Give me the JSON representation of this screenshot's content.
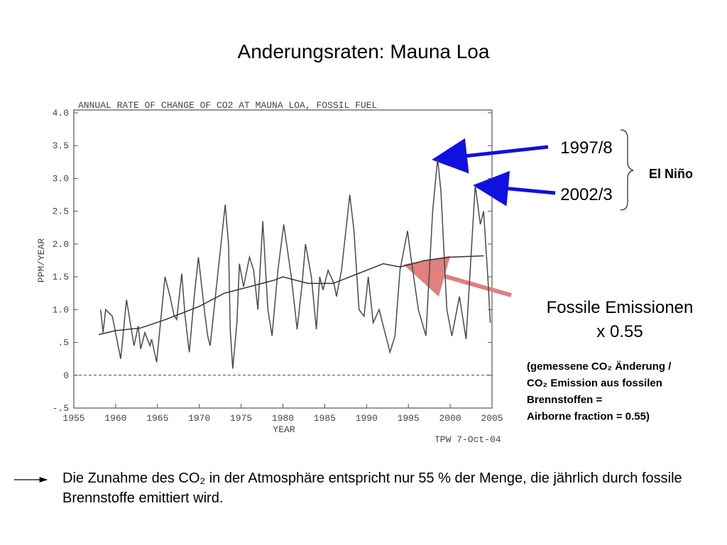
{
  "slide": {
    "title": "Anderungsraten: Mauna Loa",
    "label_1997": "1997/8",
    "label_2002": "2002/3",
    "el_nino": "El Niño",
    "fossil_1": "Fossile Emissionen",
    "fossil_2": "x 0.55",
    "note_lines": [
      "(gemessene CO₂ Änderung /",
      "CO₂ Emission aus fossilen",
      "Brennstoffen =",
      "Airborne fraction = 0.55)"
    ],
    "conclusion": "Die Zunahme des CO₂ in der Atmosphäre entspricht nur 55 % der Menge, die jährlich durch fossile Brennstoffe emittiert wird."
  },
  "chart_data": {
    "type": "line",
    "title": "ANNUAL RATE OF CHANGE OF CO2 AT MAUNA LOA, FOSSIL FUEL",
    "xlabel": "YEAR",
    "ylabel": "PPM/YEAR",
    "footnote": "TPW   7-Oct-04",
    "xlim": [
      1955,
      2005
    ],
    "xticks": [
      1955,
      1960,
      1965,
      1970,
      1975,
      1980,
      1985,
      1990,
      1995,
      2000,
      2005
    ],
    "ylim": [
      -0.5,
      4.0
    ],
    "yticks": [
      {
        "value": 4.0,
        "label": "4.0"
      },
      3.5,
      {
        "value": 3.0,
        "label": "3.0"
      },
      2.5,
      {
        "value": 2.0,
        "label": "2.0"
      },
      1.5,
      {
        "value": 1.0,
        "label": "1.0"
      },
      {
        "value": 0.5,
        "label": ".5"
      },
      0,
      {
        "value": -0.5,
        "label": "-.5"
      }
    ],
    "zero_line": "dashed",
    "series": [
      {
        "color": "#4a4a4a",
        "x": [
          1958.2,
          1958.5,
          1958.8,
          1959.6,
          1960.6,
          1961.3,
          1962.2,
          1962.7,
          1963.0,
          1963.5,
          1964.1,
          1964.3,
          1964.9,
          1965.9,
          1966.5,
          1967.0,
          1967.3,
          1967.9,
          1968.3,
          1968.8,
          1969.4,
          1969.9,
          1970.2,
          1970.7,
          1971.0,
          1971.3,
          1973.1,
          1973.5,
          1973.7,
          1974.0,
          1974.5,
          1974.8,
          1975.3,
          1976.0,
          1976.5,
          1977.0,
          1977.6,
          1978.2,
          1978.7,
          1979.4,
          1980.1,
          1981.0,
          1981.7,
          1982.3,
          1982.7,
          1983.4,
          1984.0,
          1984.4,
          1984.8,
          1985.4,
          1986.1,
          1986.4,
          1987.0,
          1988.0,
          1988.5,
          1989.1,
          1989.7,
          1990.2,
          1990.8,
          1991.5,
          1992.8,
          1993.4,
          1994.0,
          1994.9,
          1995.3,
          1996.2,
          1997.1,
          1997.9,
          1998.5,
          1998.9,
          1999.6,
          2000.2,
          2001.1,
          2001.9,
          2003.0,
          2003.6,
          2004.0,
          2004.5,
          2004.8
        ],
        "values": [
          1.0,
          0.65,
          1.0,
          0.9,
          0.25,
          1.15,
          0.45,
          0.75,
          0.4,
          0.65,
          0.45,
          0.55,
          0.2,
          1.5,
          1.2,
          0.9,
          0.85,
          1.55,
          0.9,
          0.35,
          1.2,
          1.8,
          1.45,
          0.9,
          0.6,
          0.45,
          2.6,
          2.0,
          0.7,
          0.1,
          0.8,
          1.7,
          1.35,
          1.8,
          1.6,
          1.0,
          2.35,
          1.0,
          0.6,
          1.6,
          2.3,
          1.5,
          0.7,
          1.4,
          2.0,
          1.5,
          0.7,
          1.5,
          1.3,
          1.6,
          1.4,
          1.2,
          1.6,
          2.75,
          2.2,
          1.0,
          0.9,
          1.5,
          0.8,
          1.0,
          0.35,
          0.6,
          1.6,
          2.2,
          1.8,
          1.0,
          0.6,
          2.5,
          3.3,
          2.8,
          1.0,
          0.6,
          1.2,
          0.55,
          2.9,
          2.3,
          2.5,
          1.5,
          0.8
        ]
      },
      {
        "color": "#333333",
        "x": [
          1958,
          1960,
          1963,
          1966,
          1970,
          1973,
          1976,
          1979,
          1980,
          1983,
          1986,
          1989,
          1992,
          1994,
          1997,
          2000,
          2004
        ],
        "values": [
          0.62,
          0.68,
          0.72,
          0.85,
          1.05,
          1.25,
          1.35,
          1.45,
          1.5,
          1.4,
          1.4,
          1.55,
          1.7,
          1.65,
          1.75,
          1.8,
          1.82
        ]
      }
    ]
  }
}
